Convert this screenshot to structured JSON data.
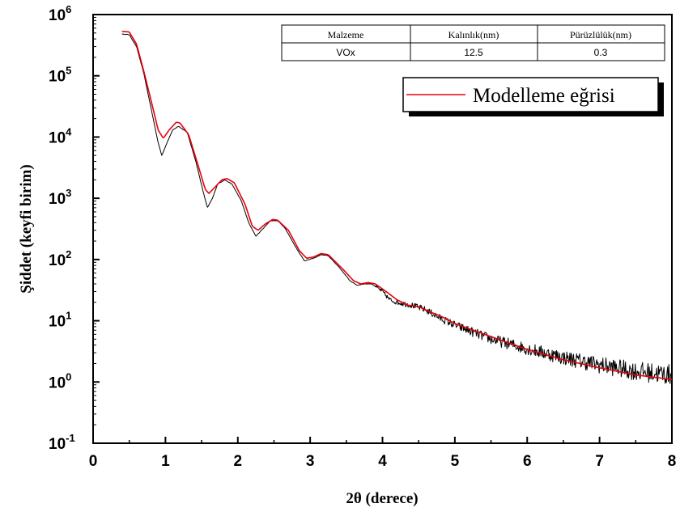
{
  "chart_data": {
    "type": "line",
    "title": "",
    "xlabel": "2θ (derece)",
    "ylabel": "Şiddet (keyfi birim)",
    "xlim": [
      0,
      8
    ],
    "ylim": [
      0.1,
      1000000
    ],
    "yscale": "log",
    "grid": false,
    "x_ticks": [
      0,
      1,
      2,
      3,
      4,
      5,
      6,
      7,
      8
    ],
    "y_ticks": [
      {
        "value": 0.1,
        "base": "10",
        "exp": "-1"
      },
      {
        "value": 1,
        "base": "10",
        "exp": "0"
      },
      {
        "value": 10,
        "base": "10",
        "exp": "1"
      },
      {
        "value": 100,
        "base": "10",
        "exp": "2"
      },
      {
        "value": 1000,
        "base": "10",
        "exp": "3"
      },
      {
        "value": 10000,
        "base": "10",
        "exp": "4"
      },
      {
        "value": 100000,
        "base": "10",
        "exp": "5"
      },
      {
        "value": 1000000,
        "base": "10",
        "exp": "6"
      }
    ],
    "legend": {
      "placement": "top-right",
      "entries": [
        "Modelleme eğrisi"
      ]
    },
    "series": [
      {
        "color": "#000000",
        "noisy": true,
        "points": [
          [
            0.4,
            480000
          ],
          [
            0.5,
            470000
          ],
          [
            0.6,
            300000
          ],
          [
            0.7,
            110000
          ],
          [
            0.8,
            30000
          ],
          [
            0.9,
            8000
          ],
          [
            0.95,
            5000
          ],
          [
            1.02,
            8000
          ],
          [
            1.1,
            13000
          ],
          [
            1.18,
            15000
          ],
          [
            1.3,
            12000
          ],
          [
            1.42,
            4000
          ],
          [
            1.52,
            1300
          ],
          [
            1.58,
            700
          ],
          [
            1.65,
            1000
          ],
          [
            1.72,
            1700
          ],
          [
            1.82,
            2000
          ],
          [
            1.92,
            1700
          ],
          [
            2.05,
            900
          ],
          [
            2.15,
            400
          ],
          [
            2.25,
            240
          ],
          [
            2.35,
            320
          ],
          [
            2.45,
            430
          ],
          [
            2.55,
            430
          ],
          [
            2.65,
            330
          ],
          [
            2.8,
            160
          ],
          [
            2.92,
            95
          ],
          [
            3.05,
            105
          ],
          [
            3.15,
            120
          ],
          [
            3.25,
            115
          ],
          [
            3.4,
            75
          ],
          [
            3.55,
            45
          ],
          [
            3.65,
            38
          ],
          [
            3.75,
            40
          ],
          [
            3.85,
            40
          ],
          [
            4.0,
            30
          ],
          [
            4.1,
            22
          ],
          [
            4.2,
            20
          ],
          [
            4.4,
            18
          ],
          [
            4.6,
            15
          ],
          [
            4.8,
            11
          ],
          [
            5.0,
            8.5
          ],
          [
            5.5,
            5.0
          ],
          [
            6.0,
            3.5
          ],
          [
            6.5,
            2.5
          ],
          [
            7.0,
            1.9
          ],
          [
            7.5,
            1.5
          ],
          [
            8.0,
            1.3
          ]
        ]
      },
      {
        "name": "Modelleme eğrisi",
        "color": "#e8000b",
        "noisy": false,
        "points": [
          [
            0.4,
            530000
          ],
          [
            0.5,
            520000
          ],
          [
            0.6,
            330000
          ],
          [
            0.7,
            120000
          ],
          [
            0.8,
            40000
          ],
          [
            0.9,
            13000
          ],
          [
            0.97,
            9500
          ],
          [
            1.05,
            13000
          ],
          [
            1.15,
            17500
          ],
          [
            1.2,
            17000
          ],
          [
            1.32,
            11000
          ],
          [
            1.45,
            3500
          ],
          [
            1.55,
            1400
          ],
          [
            1.6,
            1200
          ],
          [
            1.68,
            1500
          ],
          [
            1.78,
            2000
          ],
          [
            1.85,
            2100
          ],
          [
            1.95,
            1800
          ],
          [
            2.1,
            800
          ],
          [
            2.2,
            350
          ],
          [
            2.28,
            300
          ],
          [
            2.38,
            380
          ],
          [
            2.48,
            450
          ],
          [
            2.55,
            440
          ],
          [
            2.7,
            300
          ],
          [
            2.85,
            140
          ],
          [
            2.95,
            105
          ],
          [
            3.05,
            110
          ],
          [
            3.15,
            125
          ],
          [
            3.25,
            120
          ],
          [
            3.45,
            70
          ],
          [
            3.6,
            45
          ],
          [
            3.7,
            40
          ],
          [
            3.8,
            42
          ],
          [
            3.9,
            40
          ],
          [
            4.05,
            30
          ],
          [
            4.2,
            22
          ],
          [
            4.35,
            18
          ],
          [
            4.5,
            17
          ],
          [
            4.65,
            14
          ],
          [
            4.8,
            12
          ],
          [
            5.0,
            9
          ],
          [
            5.5,
            5.5
          ],
          [
            6.0,
            3.4
          ],
          [
            6.5,
            2.3
          ],
          [
            7.0,
            1.7
          ],
          [
            7.5,
            1.3
          ],
          [
            8.0,
            1.1
          ]
        ]
      }
    ]
  },
  "table": {
    "headers": [
      "Malzeme",
      "Kalınlık(nm)",
      "Pürüzlülük(nm)"
    ],
    "row": [
      "VOx",
      "12.5",
      "0.3"
    ]
  }
}
